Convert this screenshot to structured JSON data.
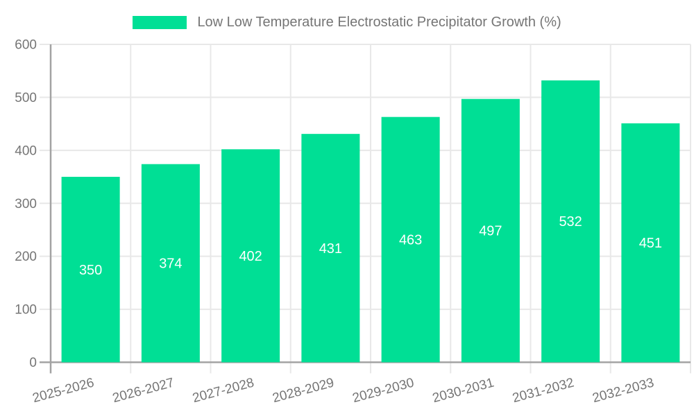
{
  "legend": {
    "label": "Low Low Temperature Electrostatic Precipitator Growth (%)",
    "swatch_color": "#00DF95"
  },
  "chart_data": {
    "type": "bar",
    "title": "",
    "xlabel": "",
    "ylabel": "",
    "categories": [
      "2025-2026",
      "2026-2027",
      "2027-2028",
      "2028-2029",
      "2029-2030",
      "2030-2031",
      "2031-2032",
      "2032-2033"
    ],
    "series": [
      {
        "name": "Low Low Temperature Electrostatic Precipitator Growth (%)",
        "values": [
          350,
          374,
          402,
          431,
          463,
          497,
          532,
          451
        ]
      }
    ],
    "ylim": [
      0,
      600
    ],
    "ytick_step": 100,
    "ytick_labels": [
      "0",
      "100",
      "200",
      "300",
      "400",
      "500",
      "600"
    ],
    "grid": true,
    "legend_position": "top-center",
    "x_label_rotation_deg": -15,
    "value_labels_position": "inside-middle",
    "colors": {
      "bar": "#00DF95",
      "value_label": "#ffffff",
      "tick_label": "#757575",
      "axis_line": "#a3a3a3",
      "grid_line": "#e8e8e8"
    }
  }
}
